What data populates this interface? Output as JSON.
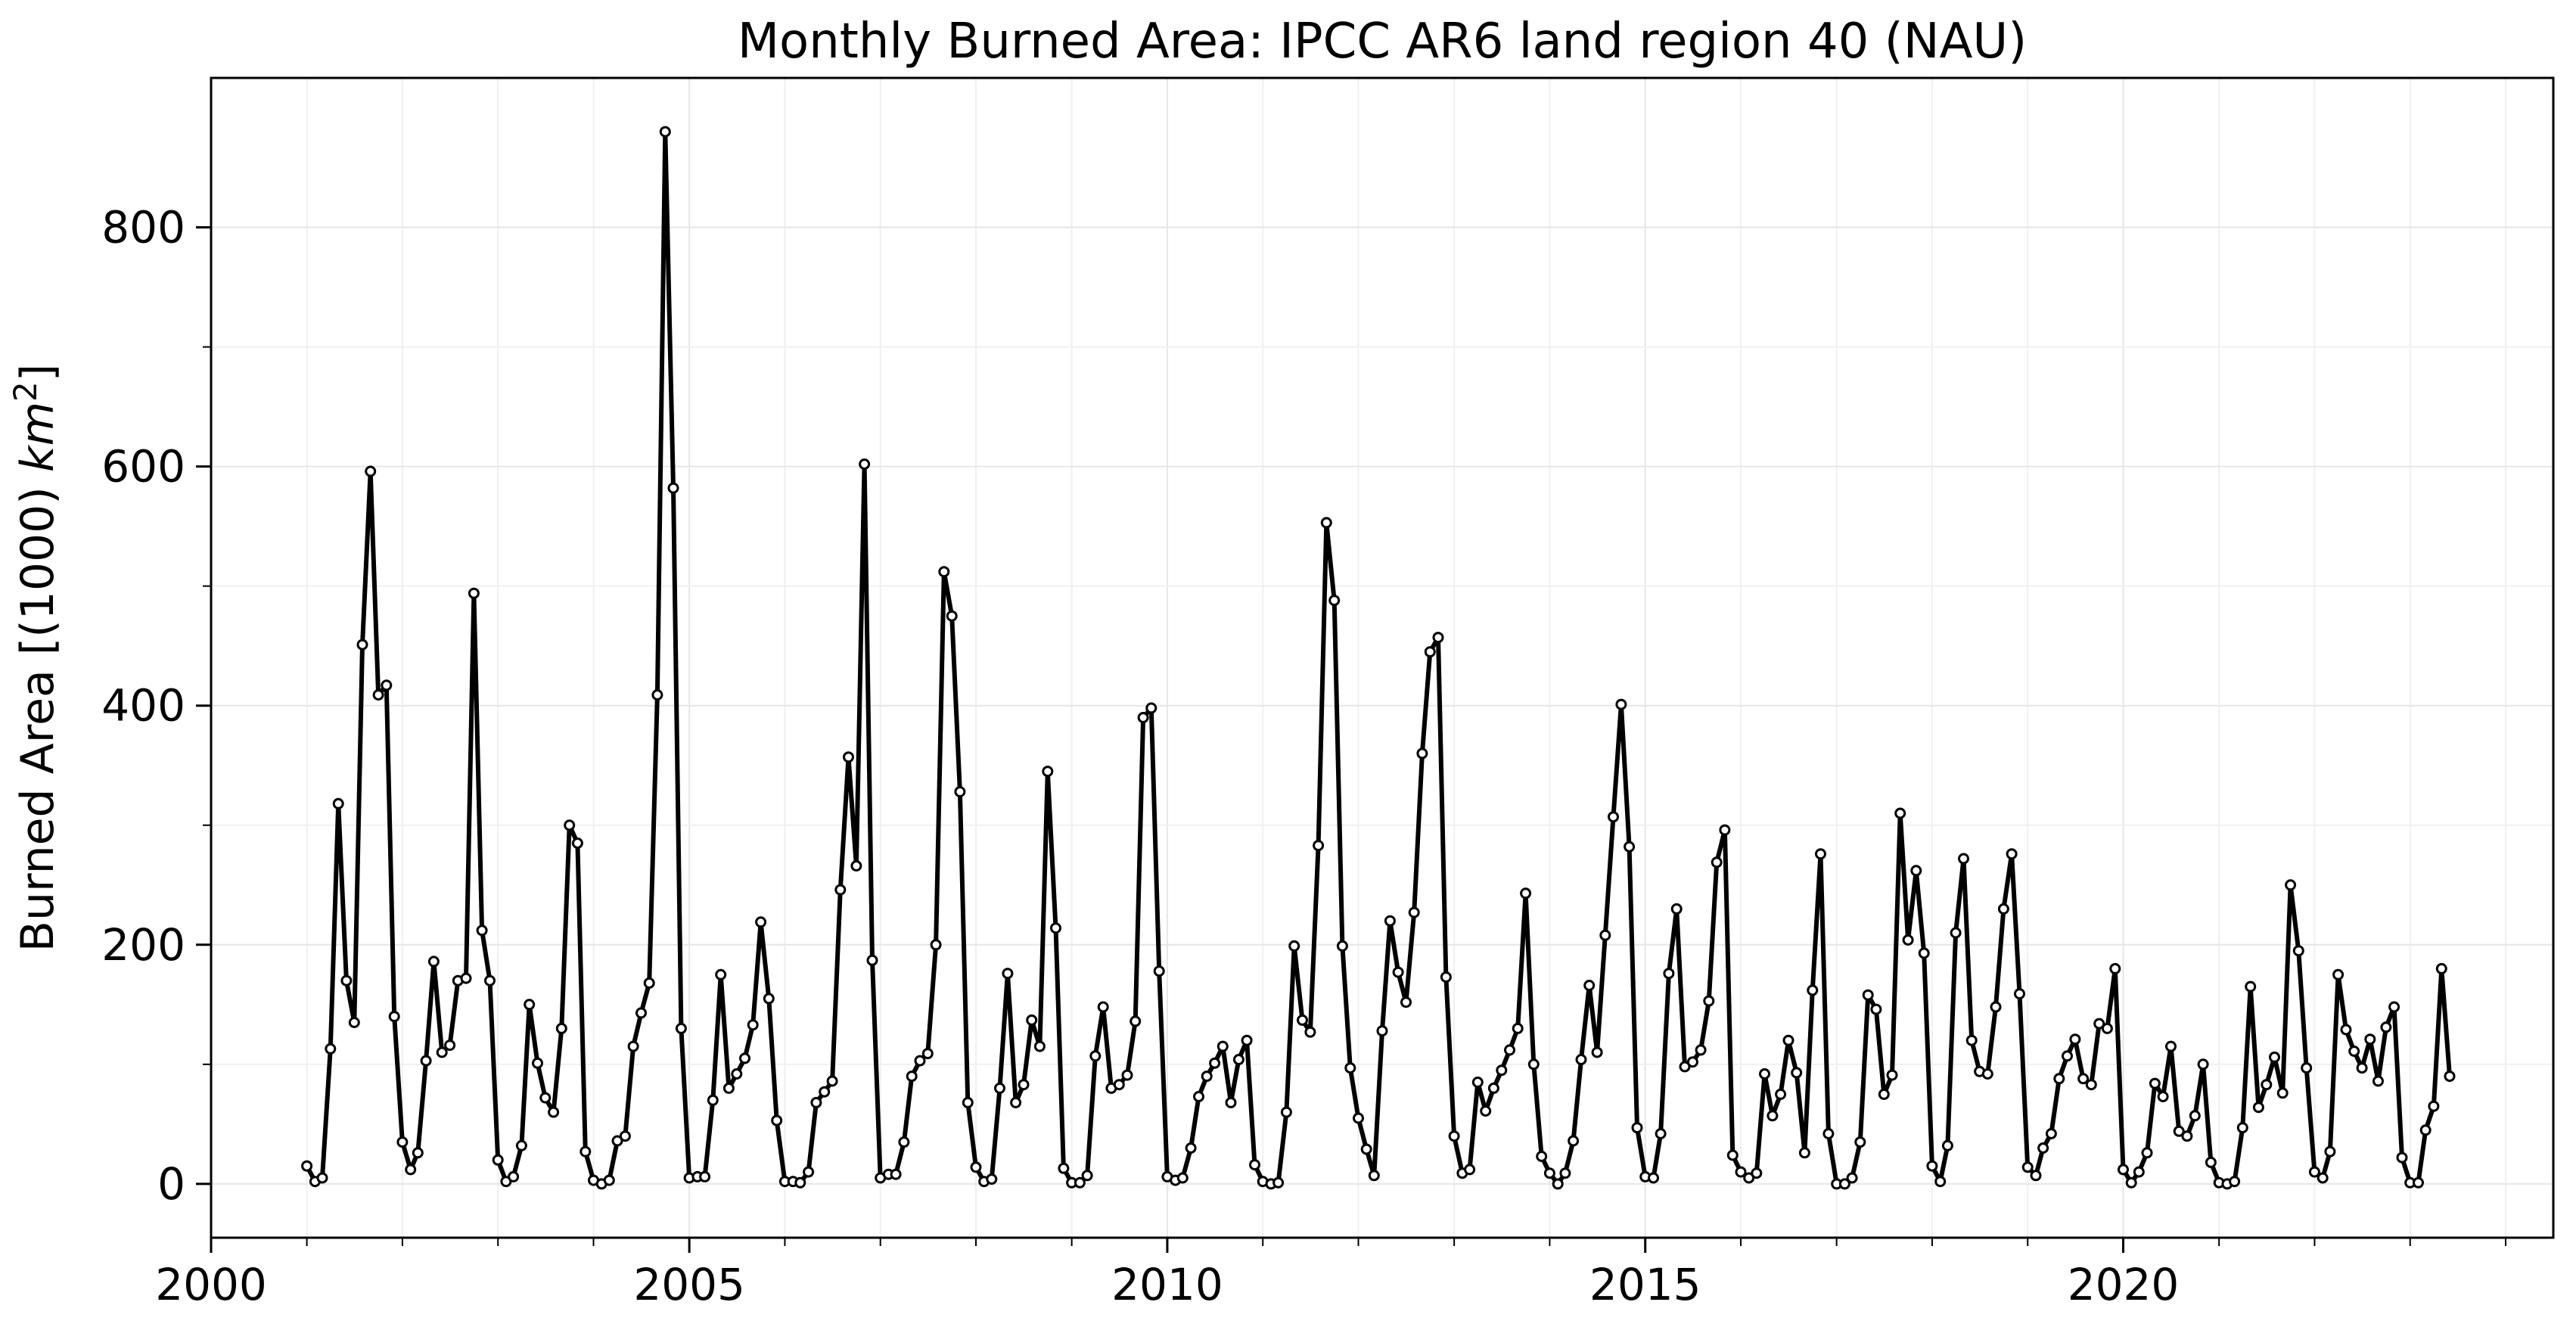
{
  "chart_data": {
    "type": "line",
    "title": "Monthly Burned Area: IPCC AR6 land region 40 (NAU)",
    "xlabel": "",
    "ylabel": "Burned Area [(1000) km²]",
    "ylabel_prefix": "Burned Area [(1000) ",
    "ylabel_unit": "km",
    "ylabel_unit_sup": "2",
    "ylabel_suffix": "]",
    "xlim": [
      "2000-01-01",
      "2024-07-01"
    ],
    "ylim": [
      -45,
      925
    ],
    "x_ticks": [
      {
        "value": "2000-01-01",
        "label": "2000"
      },
      {
        "value": "2005-01-01",
        "label": "2005"
      },
      {
        "value": "2010-01-01",
        "label": "2010"
      },
      {
        "value": "2015-01-01",
        "label": "2015"
      },
      {
        "value": "2020-01-01",
        "label": "2020"
      }
    ],
    "x_minor_ticks": [
      "2001-01-01",
      "2002-01-01",
      "2003-01-01",
      "2004-01-01",
      "2006-01-01",
      "2007-01-01",
      "2008-01-01",
      "2009-01-01",
      "2011-01-01",
      "2012-01-01",
      "2013-01-01",
      "2014-01-01",
      "2016-01-01",
      "2017-01-01",
      "2018-01-01",
      "2019-01-01",
      "2021-01-01",
      "2022-01-01",
      "2023-01-01",
      "2024-01-01"
    ],
    "y_ticks": [
      0,
      200,
      400,
      600,
      800
    ],
    "y_minor_ticks": [
      100,
      300,
      500,
      700
    ],
    "grid": true,
    "line_color": "#000000",
    "marker_fill": "#ffffff",
    "series": [
      {
        "x_start": "2001-01",
        "frequency": "monthly",
        "values": [
          15,
          2,
          5,
          113,
          318,
          170,
          135,
          451,
          596,
          409,
          417,
          140,
          35,
          12,
          26,
          103,
          186,
          110,
          116,
          170,
          172,
          494,
          212,
          170,
          20,
          2,
          6,
          32,
          150,
          101,
          72,
          60,
          130,
          300,
          285,
          27,
          3,
          0,
          3,
          36,
          40,
          115,
          143,
          168,
          409,
          880,
          582,
          130,
          5,
          6,
          6,
          70,
          175,
          80,
          92,
          105,
          133,
          219,
          155,
          53,
          2,
          2,
          1,
          10,
          68,
          77,
          86,
          246,
          357,
          266,
          602,
          187,
          5,
          8,
          8,
          35,
          90,
          103,
          109,
          200,
          512,
          475,
          328,
          68,
          14,
          2,
          4,
          80,
          176,
          68,
          83,
          137,
          115,
          345,
          214,
          13,
          1,
          1,
          7,
          107,
          148,
          80,
          83,
          91,
          136,
          390,
          398,
          178,
          6,
          3,
          5,
          30,
          73,
          90,
          101,
          115,
          68,
          104,
          120,
          16,
          2,
          0,
          1,
          60,
          199,
          137,
          127,
          283,
          553,
          488,
          199,
          97,
          55,
          29,
          7,
          128,
          220,
          177,
          152,
          227,
          360,
          445,
          457,
          173,
          40,
          9,
          12,
          85,
          61,
          80,
          95,
          112,
          130,
          243,
          100,
          23,
          9,
          0,
          9,
          36,
          104,
          166,
          110,
          208,
          307,
          401,
          282,
          47,
          6,
          5,
          42,
          176,
          230,
          98,
          102,
          112,
          153,
          269,
          296,
          24,
          10,
          5,
          9,
          92,
          57,
          75,
          120,
          93,
          26,
          162,
          276,
          42,
          0,
          0,
          5,
          35,
          158,
          146,
          75,
          91,
          310,
          204,
          262,
          193,
          15,
          2,
          32,
          210,
          272,
          120,
          94,
          92,
          148,
          230,
          276,
          159,
          14,
          7,
          30,
          42,
          88,
          107,
          121,
          88,
          83,
          134,
          130,
          180,
          12,
          1,
          10,
          26,
          84,
          73,
          115,
          44,
          40,
          57,
          100,
          18,
          1,
          0,
          2,
          47,
          165,
          64,
          83,
          106,
          76,
          250,
          195,
          97,
          10,
          5,
          27,
          175,
          129,
          111,
          97,
          121,
          86,
          131,
          148,
          22,
          1,
          1,
          45,
          65,
          180,
          90
        ]
      }
    ]
  }
}
